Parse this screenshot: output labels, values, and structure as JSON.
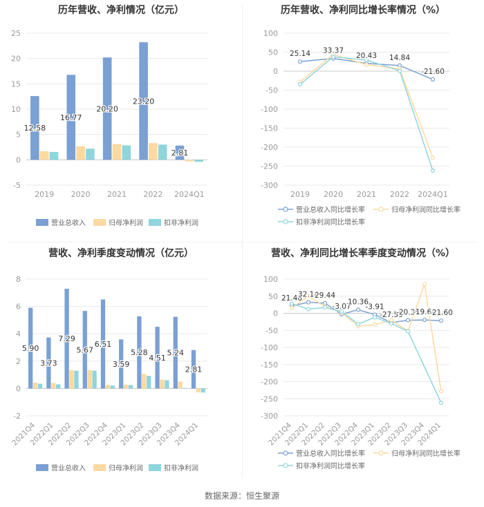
{
  "source": "数据来源：恒生聚源",
  "colors": {
    "revenue": "#7aa0d4",
    "netprofit": "#fcd9a0",
    "deducted": "#8fd5dc",
    "grid": "#e8e8e8",
    "axis": "#999999"
  },
  "chart_data": [
    {
      "id": "annual-bar",
      "type": "bar",
      "title": "历年营收、净利情况（亿元）",
      "categories": [
        "2019",
        "2020",
        "2021",
        "2022",
        "2024Q1"
      ],
      "series": [
        {
          "name": "营业总收入",
          "values": [
            12.58,
            16.77,
            20.2,
            23.2,
            2.81
          ]
        },
        {
          "name": "归母净利润",
          "values": [
            1.7,
            2.65,
            3.1,
            3.3,
            -0.3
          ]
        },
        {
          "name": "扣非净利润",
          "values": [
            1.55,
            2.2,
            2.85,
            3.0,
            -0.4
          ]
        }
      ],
      "data_labels": [
        "12.58",
        "16.77",
        "20.20",
        "23.20",
        "2.81"
      ],
      "ylim": [
        -5,
        25
      ],
      "yticks": [
        "-5",
        "0",
        "5",
        "10",
        "15",
        "20",
        "25"
      ],
      "legend": "bottom"
    },
    {
      "id": "annual-line",
      "type": "line",
      "title": "历年营收、净利同比增长率情况（%）",
      "categories": [
        "2019",
        "2020",
        "2021",
        "2022",
        "2024Q1"
      ],
      "series": [
        {
          "name": "营业总收入同比增长率",
          "values": [
            25.14,
            33.37,
            20.43,
            14.84,
            -21.6
          ]
        },
        {
          "name": "归母净利润同比增长率",
          "values": [
            -28,
            44,
            17,
            6,
            -228
          ]
        },
        {
          "name": "扣非净利润同比增长率",
          "values": [
            -35,
            38,
            29,
            1,
            -262
          ]
        }
      ],
      "data_labels": [
        "25.14",
        "33.37",
        "20.43",
        "14.84",
        "-21.60"
      ],
      "ylim": [
        -300,
        100
      ],
      "yticks": [
        "-300",
        "-250",
        "-200",
        "-150",
        "-100",
        "-50",
        "0",
        "50",
        "100"
      ],
      "legend": "bottom"
    },
    {
      "id": "quarter-bar",
      "type": "bar",
      "title": "营收、净利季度变动情况（亿元）",
      "categories": [
        "2021Q4",
        "2022Q1",
        "2022Q2",
        "2022Q3",
        "2022Q4",
        "2023Q1",
        "2023Q2",
        "2023Q3",
        "2023Q4",
        "2024Q1"
      ],
      "series": [
        {
          "name": "营业总收入",
          "values": [
            5.9,
            3.73,
            7.29,
            5.67,
            6.51,
            3.59,
            5.28,
            4.51,
            5.24,
            2.81
          ]
        },
        {
          "name": "归母净利润",
          "values": [
            0.42,
            0.4,
            1.35,
            1.35,
            0.27,
            0.28,
            1.05,
            0.65,
            0.5,
            -0.28
          ]
        },
        {
          "name": "扣非净利润",
          "values": [
            0.35,
            0.3,
            1.3,
            1.3,
            0.22,
            0.25,
            0.92,
            0.6,
            0.03,
            -0.3
          ]
        }
      ],
      "data_labels": [
        "5.90",
        "3.73",
        "7.29",
        "5.67",
        "6.51",
        "3.59",
        "5.28",
        "4.51",
        "5.24",
        "2.81"
      ],
      "ylim": [
        -2,
        8
      ],
      "yticks": [
        "-2",
        "0",
        "2",
        "4",
        "6",
        "8"
      ],
      "legend": "bottom"
    },
    {
      "id": "quarter-line",
      "type": "line",
      "title": "营收、净利同比增长率季度变动情况（%）",
      "categories": [
        "2021Q4",
        "2022Q1",
        "2022Q2",
        "2022Q3",
        "2022Q4",
        "2023Q1",
        "2023Q2",
        "2023Q3",
        "2023Q4",
        "2024Q1"
      ],
      "series": [
        {
          "name": "营业总收入同比增长率",
          "values": [
            21.48,
            32.14,
            29.44,
            -3.07,
            10.36,
            -3.91,
            -27.59,
            -20.35,
            -19.64,
            -21.6
          ]
        },
        {
          "name": "归母净利润同比增长率",
          "values": [
            15,
            50,
            20,
            2,
            -38,
            -33,
            -20,
            -52,
            85,
            -228
          ]
        },
        {
          "name": "扣非净利润同比增长率",
          "values": [
            28,
            12,
            17,
            5,
            -32,
            -12,
            -30,
            -53,
            null,
            -262
          ]
        }
      ],
      "data_labels": [
        "21.48",
        "32.14",
        "29.44",
        "-3.07",
        "10.36",
        "-3.91",
        "-27.59",
        "-20.35",
        "-19.64",
        "-21.60"
      ],
      "ylim": [
        -300,
        100
      ],
      "yticks": [
        "-300",
        "-250",
        "-200",
        "-150",
        "-100",
        "-50",
        "0",
        "50",
        "100"
      ],
      "legend": "bottom"
    }
  ]
}
